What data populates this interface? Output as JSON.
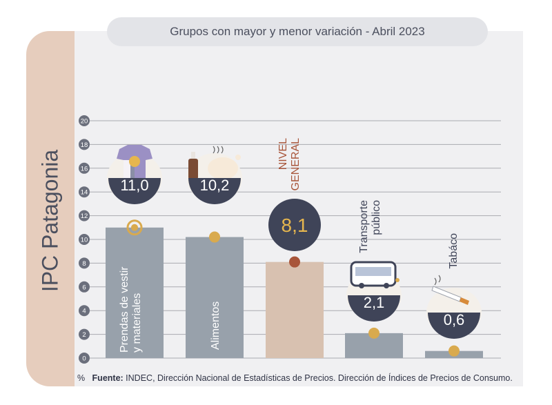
{
  "side_title": "IPC Patagonia",
  "chart_data": {
    "type": "bar",
    "title": "Grupos con mayor y menor variación - Abril 2023",
    "ylabel": "%",
    "ylim": [
      0,
      20
    ],
    "yticks": [
      "0",
      "2",
      "4",
      "6",
      "8",
      "10",
      "12",
      "14",
      "16",
      "18",
      "20"
    ],
    "grid": true,
    "categories": [
      "Prendas de vestir y materiales",
      "Alimentos",
      "NIVEL GENERAL",
      "Transporte público",
      "Tabáco"
    ],
    "values": [
      11.0,
      10.2,
      8.1,
      2.1,
      0.6
    ],
    "value_labels": [
      "11,0",
      "10,2",
      "8,1",
      "2,1",
      "0,6"
    ],
    "category_label_lines": [
      [
        "Prendas de vestir",
        "y materiales"
      ],
      [
        "Alimentos"
      ],
      [
        "NIVEL",
        "GENERAL"
      ],
      [
        "Transporte",
        "público"
      ],
      [
        "Tabáco"
      ]
    ],
    "icons": [
      "tshirt-icon",
      "food-icon",
      "",
      "bus-icon",
      "cigarette-icon"
    ],
    "colors": {
      "bar": "#98a1ab",
      "bar_general": "#d8c1b0",
      "bubble": "#3f4458",
      "marker": "#d9aa4e",
      "marker_general": "#a8553a",
      "grid": "#a9aab0",
      "tick_circle": "#6b6f7c"
    }
  },
  "footer": {
    "unit": "%",
    "source_label": "Fuente:",
    "source_text": "INDEC, Dirección Nacional de Estadísticas de Precios. Dirección de Índices de Precios de Consumo."
  }
}
